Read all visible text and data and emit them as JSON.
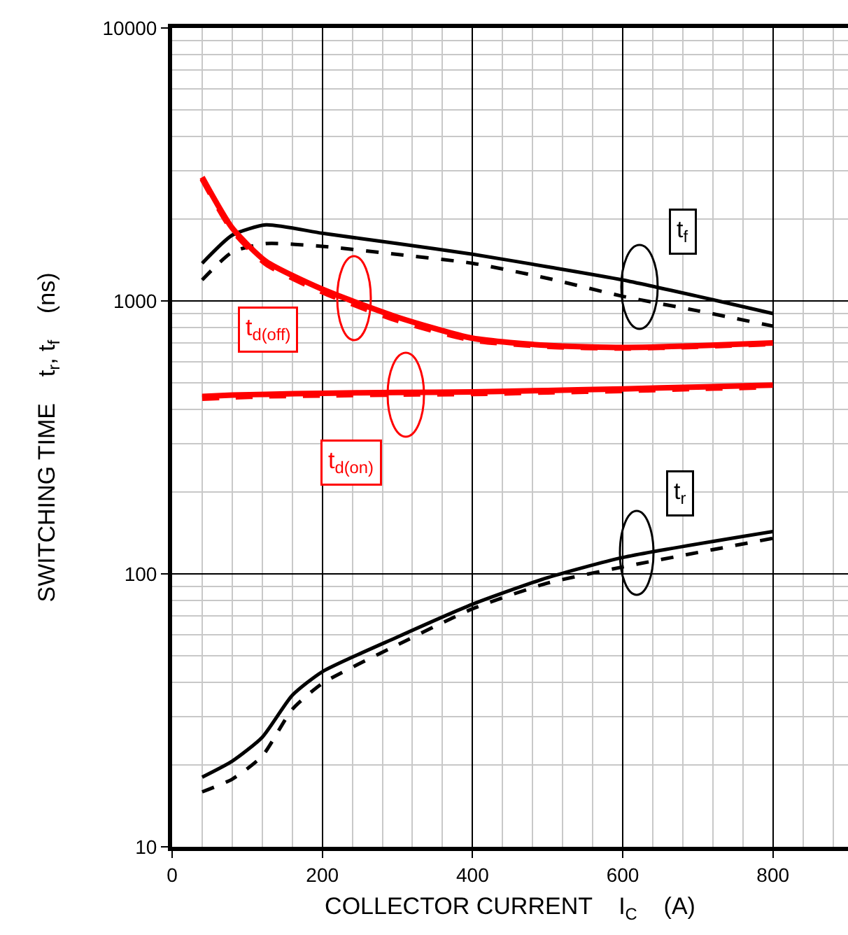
{
  "chart_data": {
    "type": "line",
    "xlabel": "COLLECTOR CURRENT    I$_{C}$    (A)",
    "ylabel": "SWITCHING TIME    t$_{r}$, t$_{f}$    (ns)",
    "x": [
      40,
      80,
      125,
      200,
      300,
      400,
      500,
      600,
      700,
      800
    ],
    "series": [
      {
        "color": "#000000",
        "line_style": "solid",
        "values": [
          1374,
          1742,
          1900,
          1770,
          1622,
          1483,
          1334,
          1194,
          1040,
          899
        ]
      },
      {
        "color": "#000000",
        "line_style": "dashed",
        "values": [
          1194,
          1510,
          1622,
          1585,
          1480,
          1374,
          1210,
          1040,
          920,
          809
        ]
      },
      {
        "color": "#ff0000",
        "line_style": "solid",
        "values": [
          2840,
          1850,
          1396,
          1104,
          872,
          730,
          687,
          675,
          685,
          702
        ]
      },
      {
        "color": "#ff0000",
        "line_style": "dashed",
        "values": [
          2800,
          1820,
          1370,
          1080,
          850,
          720,
          682,
          672,
          682,
          698
        ]
      },
      {
        "color": "#ff0000",
        "line_style": "solid",
        "values": [
          447,
          452,
          455,
          459,
          462,
          464,
          470,
          476,
          484,
          492
        ]
      },
      {
        "color": "#ff0000",
        "line_style": "dashed",
        "values": [
          440,
          445,
          449,
          452,
          456,
          458,
          464,
          470,
          478,
          485
        ]
      },
      {
        "color": "#000000",
        "line_style": "solid",
        "x": [
          40,
          80,
          120,
          160,
          200,
          300,
          400,
          500,
          600,
          800
        ],
        "values": [
          18.0,
          20.6,
          25.2,
          35.9,
          43.8,
          58.7,
          77.4,
          96.9,
          114.8,
          143
        ]
      },
      {
        "color": "#000000",
        "line_style": "dashed",
        "x": [
          40,
          80,
          120,
          160,
          200,
          300,
          400,
          500,
          600,
          800
        ],
        "values": [
          15.9,
          17.7,
          21.5,
          31.9,
          39.7,
          54.9,
          74.5,
          92.5,
          106,
          135
        ]
      }
    ],
    "log": "y",
    "xlim": [
      0,
      900
    ],
    "ylim": [
      10,
      10000
    ],
    "xticks": [
      0,
      200,
      400,
      600,
      800
    ],
    "yticks": [
      10,
      100,
      1000,
      10000
    ],
    "grid": true,
    "marker": "none",
    "annotations": [
      {
        "text": "t$_{f}$",
        "x": 681,
        "y": 1800
      },
      {
        "text": "t$_{r}$",
        "x": 676,
        "y": 198
      },
      {
        "text": "t$_{d(off)}$",
        "x": 128,
        "y": 788
      },
      {
        "text": "t$_{d(on)}$",
        "x": 238,
        "y": 257
      }
    ]
  }
}
